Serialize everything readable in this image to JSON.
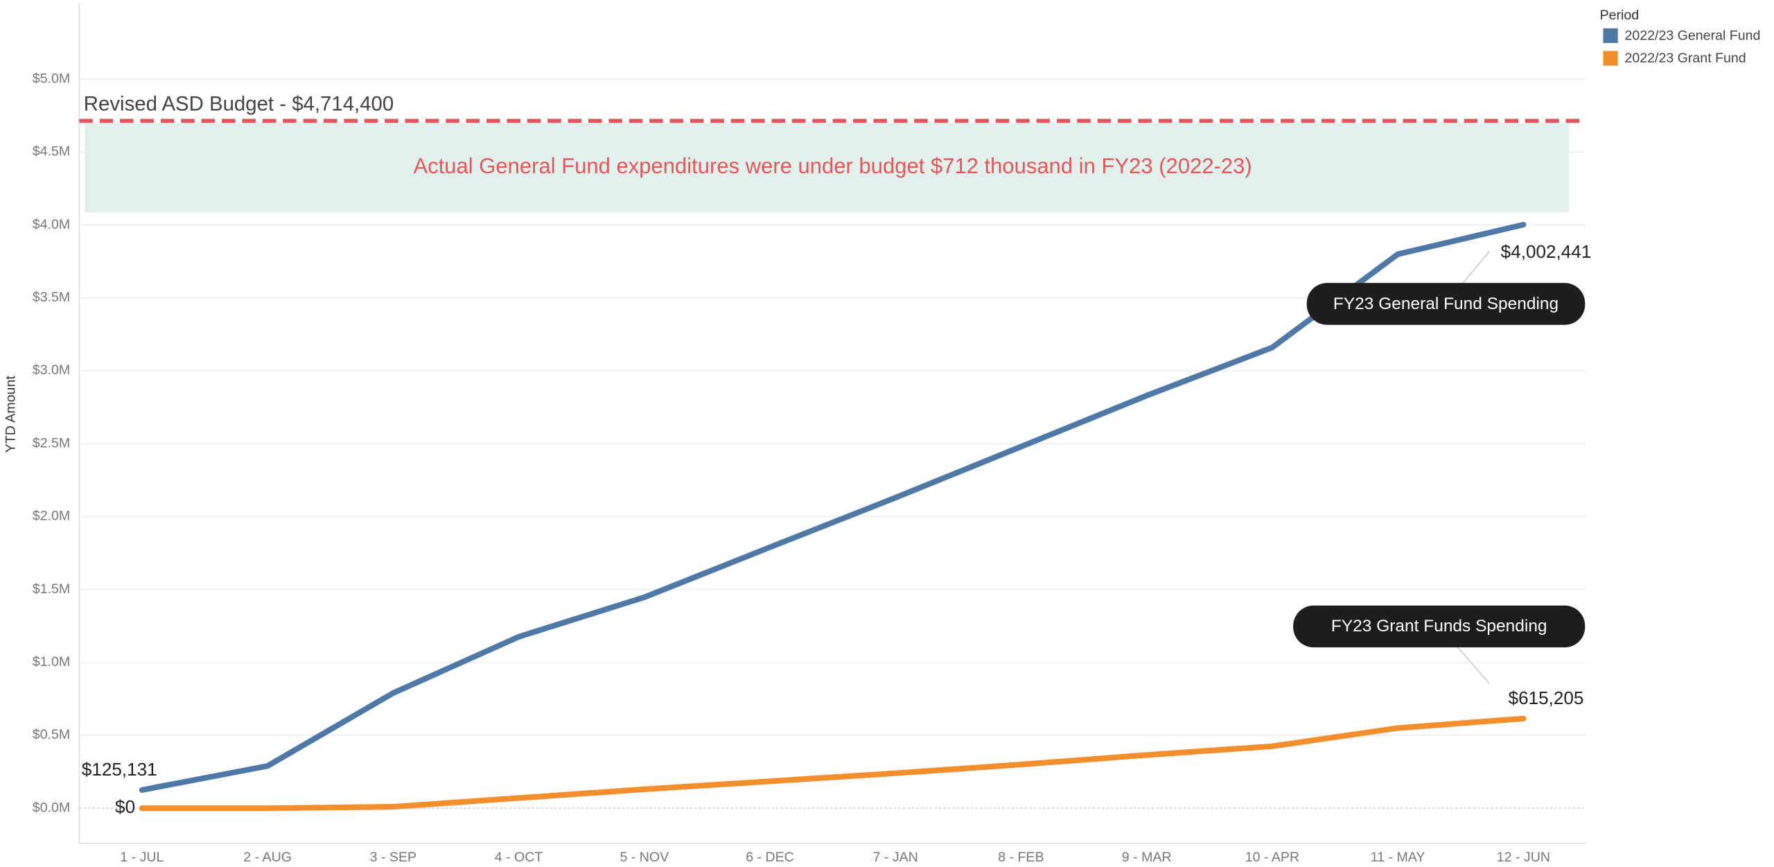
{
  "chart_data": {
    "type": "line",
    "y_axis_label": "YTD Amount",
    "legend_title": "Period",
    "legend": "top-right",
    "grid": true,
    "categories": [
      "1 - JUL",
      "2 - AUG",
      "3 - SEP",
      "4 - OCT",
      "5 - NOV",
      "6 - DEC",
      "7 - JAN",
      "8 - FEB",
      "9 - MAR",
      "10 - APR",
      "11 - MAY",
      "12 - JUN"
    ],
    "series": [
      {
        "name": "2022/23 General Fund",
        "color": "#4e79a7",
        "values": [
          125131,
          290000,
          790000,
          1176000,
          1447000,
          1790000,
          2130000,
          2480000,
          2830000,
          3160000,
          3800000,
          4002441
        ],
        "value_labels": [
          "$125,131",
          null,
          null,
          null,
          null,
          null,
          null,
          null,
          null,
          null,
          null,
          "$4,002,441"
        ],
        "callout": "FY23 General Fund Spending"
      },
      {
        "name": "2022/23 Grant Fund",
        "color": "#f28e2b",
        "values": [
          0,
          0,
          10000,
          70000,
          130000,
          185000,
          240000,
          300000,
          365000,
          425000,
          550000,
          615205
        ],
        "value_labels": [
          "$0",
          null,
          null,
          null,
          null,
          null,
          null,
          null,
          null,
          null,
          null,
          "$615,205"
        ],
        "callout": "FY23 Grant Funds Spending"
      }
    ],
    "ylim": [
      -240000,
      5520000
    ],
    "yticks": [
      {
        "value": 0,
        "label": "$0.0M"
      },
      {
        "value": 500000,
        "label": "$0.5M"
      },
      {
        "value": 1000000,
        "label": "$1.0M"
      },
      {
        "value": 1500000,
        "label": "$1.5M"
      },
      {
        "value": 2000000,
        "label": "$2.0M"
      },
      {
        "value": 2500000,
        "label": "$2.5M"
      },
      {
        "value": 3000000,
        "label": "$3.0M"
      },
      {
        "value": 3500000,
        "label": "$3.5M"
      },
      {
        "value": 4000000,
        "label": "$4.0M"
      },
      {
        "value": 4500000,
        "label": "$4.5M"
      },
      {
        "value": 5000000,
        "label": "$5.0M"
      }
    ],
    "reference_line": {
      "value": 4714400,
      "label": "Revised ASD Budget - $4,714,400",
      "color": "#e15759"
    },
    "reference_band": {
      "range": [
        4087000,
        4700000
      ],
      "label": "Actual General Fund expenditures were under budget $712 thousand in FY23 (2022-23)",
      "color": "#e2efec"
    }
  }
}
